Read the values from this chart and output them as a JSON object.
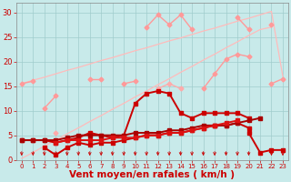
{
  "x": [
    0,
    1,
    2,
    3,
    4,
    5,
    6,
    7,
    8,
    9,
    10,
    11,
    12,
    13,
    14,
    15,
    16,
    17,
    18,
    19,
    20,
    21,
    22,
    23
  ],
  "background_color": "#c8eaea",
  "grid_color": "#a0cccc",
  "xlabel": "Vent moyen/en rafales ( km/h )",
  "xlabel_color": "#cc0000",
  "xlabel_fontsize": 7.5,
  "tick_color": "#cc0000",
  "tick_fontsize": 5.0,
  "ylim": [
    0,
    32
  ],
  "yticks": [
    0,
    5,
    10,
    15,
    20,
    25,
    30
  ],
  "ytick_fontsize": 6.0,
  "series": [
    {
      "name": "diag1_faint",
      "color": "#ffbbbb",
      "lw": 0.9,
      "marker": null,
      "values": [
        15.5,
        16.2,
        16.8,
        17.5,
        18.2,
        18.8,
        19.5,
        20.2,
        20.8,
        21.5,
        22.2,
        22.8,
        23.5,
        24.2,
        24.8,
        25.5,
        26.2,
        26.8,
        27.5,
        28.2,
        28.8,
        29.5,
        30.2,
        17.0
      ]
    },
    {
      "name": "diag2_faint",
      "color": "#ffbbbb",
      "lw": 0.9,
      "marker": null,
      "values": [
        0.3,
        1.5,
        2.8,
        4.0,
        5.3,
        6.5,
        7.8,
        9.0,
        10.3,
        11.5,
        12.8,
        14.0,
        15.3,
        16.5,
        17.8,
        19.0,
        20.3,
        21.5,
        22.8,
        24.0,
        25.3,
        26.5,
        27.0,
        null
      ]
    },
    {
      "name": "pink_zigzag_top",
      "color": "#ff9999",
      "lw": 1.0,
      "marker": "D",
      "ms": 2.5,
      "values": [
        null,
        null,
        null,
        null,
        null,
        null,
        null,
        null,
        null,
        null,
        null,
        27.0,
        29.5,
        27.5,
        29.5,
        26.5,
        null,
        null,
        null,
        29.0,
        26.5,
        null,
        27.5,
        null
      ]
    },
    {
      "name": "pink_zigzag_mid",
      "color": "#ff9999",
      "lw": 1.0,
      "marker": "D",
      "ms": 2.5,
      "values": [
        null,
        null,
        10.5,
        13.0,
        null,
        null,
        16.5,
        16.5,
        null,
        15.5,
        16.0,
        null,
        null,
        null,
        null,
        null,
        null,
        null,
        null,
        null,
        null,
        null,
        null,
        null
      ]
    },
    {
      "name": "pink_line_left_right",
      "color": "#ff9999",
      "lw": 1.0,
      "marker": "D",
      "ms": 2.5,
      "values": [
        15.5,
        16.0,
        null,
        null,
        null,
        null,
        null,
        null,
        null,
        null,
        null,
        null,
        null,
        null,
        null,
        null,
        14.5,
        17.5,
        20.5,
        21.5,
        21.0,
        null,
        15.5,
        16.5
      ]
    },
    {
      "name": "medium_pink_rising",
      "color": "#ffaaaa",
      "lw": 1.0,
      "marker": "D",
      "ms": 2.5,
      "values": [
        null,
        null,
        null,
        5.5,
        null,
        null,
        null,
        null,
        null,
        null,
        null,
        null,
        14.5,
        15.5,
        14.5,
        null,
        null,
        null,
        null,
        null,
        null,
        null,
        null,
        null
      ]
    },
    {
      "name": "medium_pink_cont",
      "color": "#ffaaaa",
      "lw": 1.0,
      "marker": "D",
      "ms": 2.5,
      "values": [
        null,
        null,
        null,
        null,
        null,
        null,
        null,
        null,
        null,
        null,
        null,
        null,
        null,
        null,
        null,
        null,
        null,
        null,
        null,
        null,
        null,
        null,
        null,
        null
      ]
    },
    {
      "name": "dark_red_upper",
      "color": "#cc0000",
      "lw": 1.4,
      "marker": "s",
      "ms": 2.5,
      "values": [
        4.0,
        4.0,
        4.0,
        3.5,
        4.0,
        4.5,
        5.5,
        5.0,
        4.5,
        5.0,
        11.5,
        13.5,
        14.0,
        13.5,
        9.5,
        8.5,
        9.5,
        9.5,
        9.5,
        9.5,
        8.5,
        null,
        null,
        null
      ]
    },
    {
      "name": "dark_red_lower",
      "color": "#cc0000",
      "lw": 1.4,
      "marker": "s",
      "ms": 2.5,
      "values": [
        null,
        null,
        2.5,
        1.0,
        2.5,
        3.5,
        3.0,
        3.5,
        3.5,
        4.0,
        4.5,
        5.0,
        5.0,
        5.5,
        5.5,
        6.0,
        6.5,
        7.0,
        7.0,
        7.5,
        6.5,
        null,
        null,
        null
      ]
    },
    {
      "name": "dark_red_flat1",
      "color": "#aa0000",
      "lw": 1.4,
      "marker": "s",
      "ms": 2.5,
      "values": [
        4.0,
        4.0,
        4.0,
        4.0,
        4.5,
        5.0,
        5.0,
        5.0,
        5.0,
        5.0,
        5.5,
        5.5,
        5.5,
        6.0,
        6.0,
        6.5,
        7.0,
        7.0,
        7.0,
        7.5,
        8.0,
        8.5,
        null,
        null
      ]
    },
    {
      "name": "dark_red_flat2",
      "color": "#dd1111",
      "lw": 1.4,
      "marker": "s",
      "ms": 2.5,
      "values": [
        null,
        null,
        null,
        3.5,
        4.0,
        4.0,
        4.0,
        4.0,
        4.5,
        4.5,
        4.5,
        5.0,
        5.0,
        5.5,
        5.5,
        6.0,
        6.5,
        7.0,
        7.5,
        8.0,
        null,
        null,
        null,
        null
      ]
    },
    {
      "name": "bottom_end_right",
      "color": "#cc0000",
      "lw": 1.4,
      "marker": "s",
      "ms": 2.5,
      "values": [
        null,
        null,
        null,
        null,
        null,
        null,
        null,
        null,
        null,
        null,
        null,
        null,
        null,
        null,
        null,
        null,
        null,
        null,
        null,
        null,
        5.5,
        1.5,
        2.0,
        2.0
      ]
    }
  ]
}
